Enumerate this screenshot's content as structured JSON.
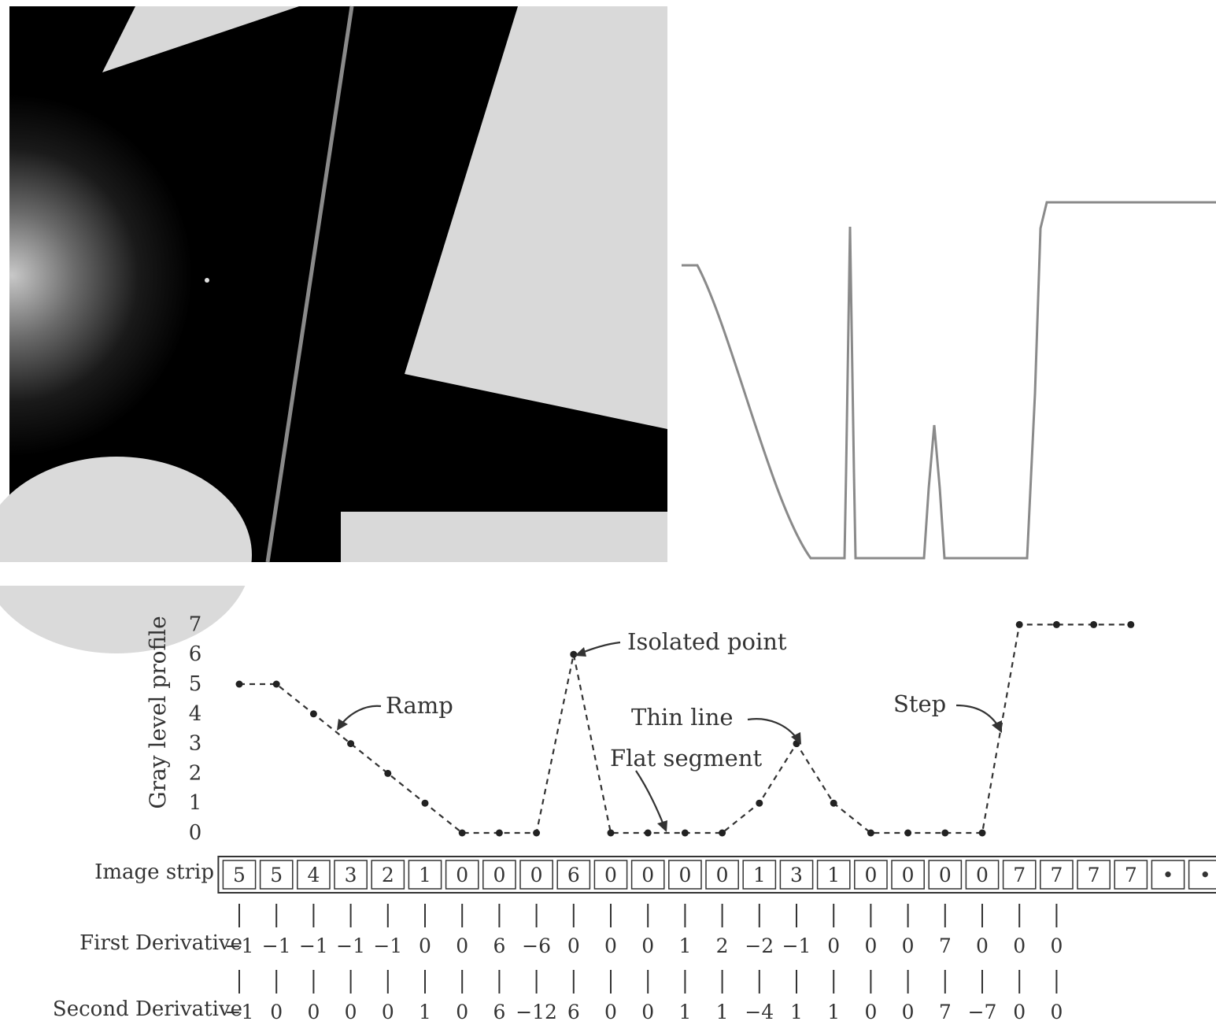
{
  "profile_chart": {
    "ylabel": "Gray level profile",
    "yticks": [
      "0",
      "1",
      "2",
      "3",
      "4",
      "5",
      "6",
      "7"
    ],
    "annotations": {
      "isolated_point": "Isolated point",
      "ramp": "Ramp",
      "thin_line": "Thin line",
      "flat_segment": "Flat segment",
      "step": "Step"
    }
  },
  "chart_data": {
    "type": "line",
    "ylabel": "Gray level profile",
    "ylim": [
      0,
      7
    ],
    "x": [
      1,
      2,
      3,
      4,
      5,
      6,
      7,
      8,
      9,
      10,
      11,
      12,
      13,
      14,
      15,
      16,
      17,
      18,
      19,
      20,
      21,
      22,
      23,
      24,
      25
    ],
    "series": [
      {
        "values": [
          5,
          5,
          4,
          3,
          2,
          1,
          0,
          0,
          0,
          6,
          0,
          0,
          0,
          0,
          1,
          3,
          1,
          0,
          0,
          0,
          0,
          7,
          7,
          7,
          7
        ]
      }
    ]
  },
  "strip": {
    "label": "Image strip",
    "values": [
      "5",
      "5",
      "4",
      "3",
      "2",
      "1",
      "0",
      "0",
      "0",
      "6",
      "0",
      "0",
      "0",
      "0",
      "1",
      "3",
      "1",
      "0",
      "0",
      "0",
      "0",
      "7",
      "7",
      "7",
      "7",
      "•",
      "•"
    ]
  },
  "first_derivative": {
    "label": "First Derivative",
    "values": [
      "−1",
      "−1",
      "−1",
      "−1",
      "−1",
      "0",
      "0",
      "6",
      "−6",
      "0",
      "0",
      "0",
      "1",
      "2",
      "−2",
      "−1",
      "0",
      "0",
      "0",
      "7",
      "0",
      "0",
      "0"
    ]
  },
  "second_derivative": {
    "label": "Second Derivative",
    "values": [
      "−1",
      "0",
      "0",
      "0",
      "0",
      "1",
      "0",
      "6",
      "−12",
      "6",
      "0",
      "0",
      "1",
      "1",
      "−4",
      "1",
      "1",
      "0",
      "0",
      "7",
      "−7",
      "0",
      "0"
    ]
  }
}
